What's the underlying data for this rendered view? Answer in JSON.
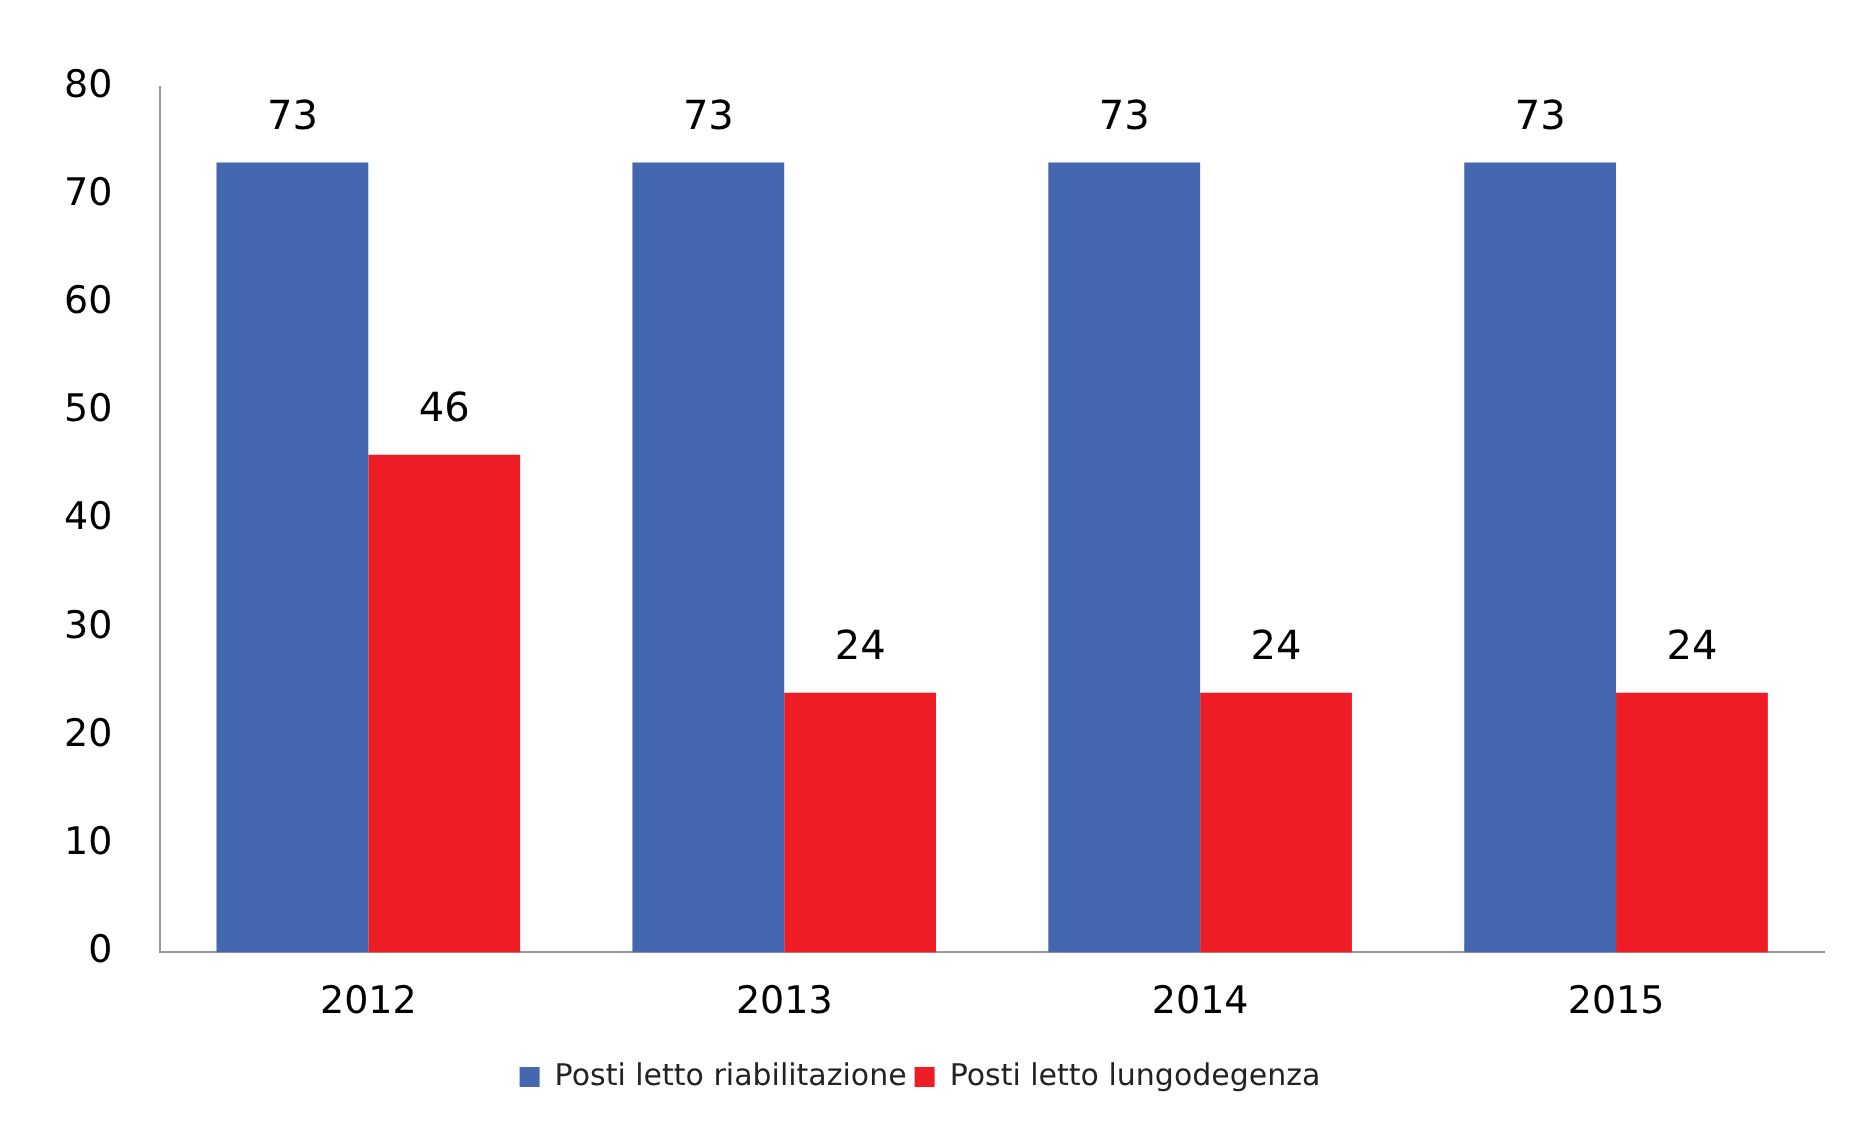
{
  "chart_data": {
    "type": "bar",
    "categories": [
      "2012",
      "2013",
      "2014",
      "2015"
    ],
    "series": [
      {
        "name": "Posti letto riabilitazione",
        "color": "#4567b0",
        "values": [
          73,
          73,
          73,
          73
        ]
      },
      {
        "name": "Posti letto lungodegenza",
        "color": "#ee1c24",
        "values": [
          46,
          24,
          24,
          24
        ]
      }
    ],
    "ylim": [
      0,
      80
    ],
    "yticks": [
      0,
      10,
      20,
      30,
      40,
      50,
      60,
      70,
      80
    ],
    "grid": false,
    "legend": "bottom",
    "data_labels": true
  }
}
